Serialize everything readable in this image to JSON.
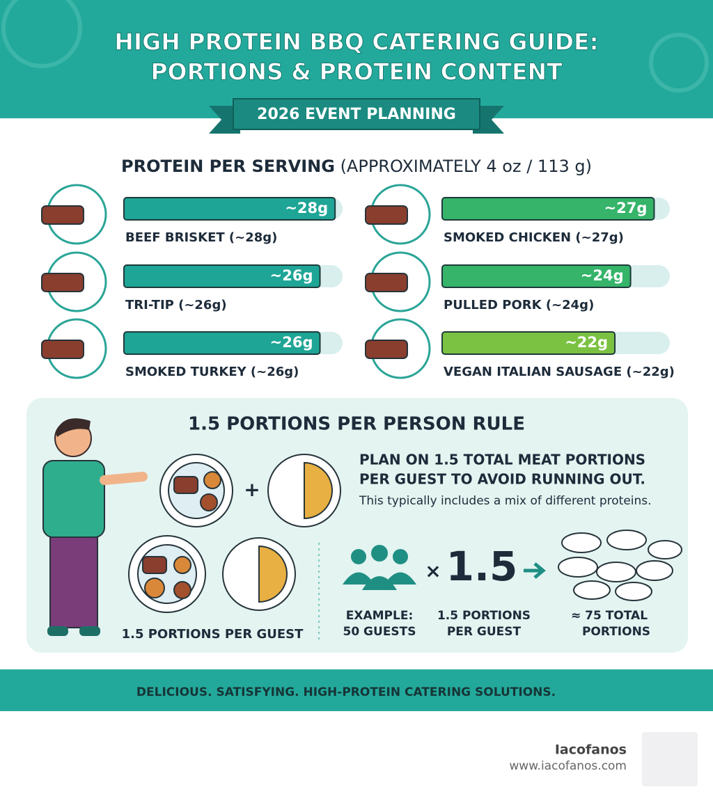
{
  "header": {
    "title_lines": [
      "HIGH PROTEIN BBQ CATERING GUIDE:",
      "PORTIONS & PROTEIN CONTENT"
    ],
    "banner": "2026 EVENT PLANNING"
  },
  "protein_section": {
    "title": "PROTEIN PER SERVING",
    "title_note": "(APPROXIMATELY 4 oz / 113 g)",
    "xlim": [
      0,
      29
    ],
    "items": [
      {
        "label": "BEEF BRISKET (~28g)",
        "value": 28,
        "value_label": "~28g",
        "color": "#1ea596"
      },
      {
        "label": "TRI-TIP (~26g)",
        "value": 26,
        "value_label": "~26g",
        "color": "#1ea596"
      },
      {
        "label": "SMOKED TURKEY (~26g)",
        "value": 26,
        "value_label": "~26g",
        "color": "#1ea596"
      },
      {
        "label": "SMOKED CHICKEN (~27g)",
        "value": 27,
        "value_label": "~27g",
        "color": "#35b46a"
      },
      {
        "label": "PULLED PORK (~24g)",
        "value": 24,
        "value_label": "~24g",
        "color": "#35b46a"
      },
      {
        "label": "VEGAN ITALIAN SAUSAGE (~22g)",
        "value": 22,
        "value_label": "~22g",
        "color": "#7cc242"
      }
    ]
  },
  "rule_section": {
    "title": "1.5 PORTIONS PER PERSON RULE",
    "plates_caption": "1.5 PORTIONS PER GUEST",
    "heading_lines": [
      "PLAN ON 1.5 TOTAL MEAT PORTIONS",
      "PER GUEST TO AVOID RUNNING OUT."
    ],
    "note": "This typically includes a mix of different proteins.",
    "equation": {
      "multiply": "×",
      "factor": "1.5",
      "guests_lines": [
        "EXAMPLE:",
        "50 GUESTS"
      ],
      "factor_lines": [
        "1.5 PORTIONS",
        "PER GUEST"
      ],
      "result_lines": [
        "≈ 75 TOTAL",
        "PORTIONS"
      ]
    }
  },
  "footer": {
    "tagline": "DELICIOUS. SATISFYING. HIGH-PROTEIN CATERING SOLUTIONS."
  },
  "brand": {
    "name": "Iacofanos",
    "url": "www.iacofanos.com"
  }
}
